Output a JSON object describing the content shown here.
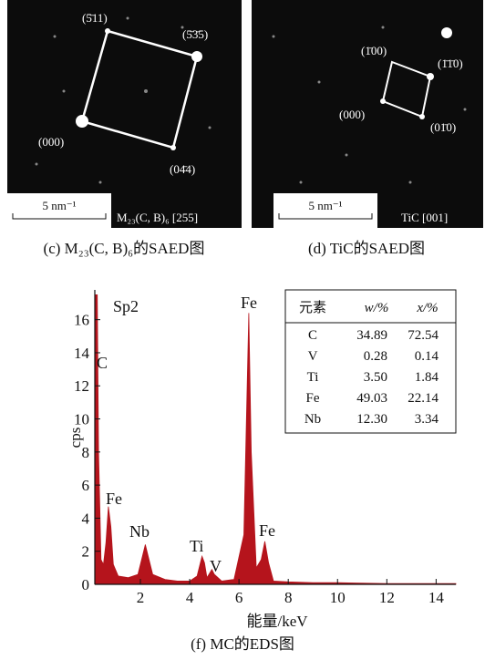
{
  "panels": [
    {
      "spots": [
        "(5̄11)",
        "(5̄3̄5)",
        "(000)",
        "(04̄4)"
      ],
      "scale_bar": "5 nm⁻¹",
      "phase": "M₂₃(C, B)₆ [255]",
      "caption": "(c) M₂₃(C, B)₆的SAED图"
    },
    {
      "spots": [
        "(1̄00)",
        "(1̄1̄0)",
        "(000)",
        "(01̄0)"
      ],
      "scale_bar": "5 nm⁻¹",
      "phase": "TiC [001]",
      "caption": "(d) TiC的SAED图"
    }
  ],
  "chart_data": {
    "type": "area",
    "caption": "(f) MC的EDS图",
    "xlabel": "能量/keV",
    "ylabel": "cps",
    "color": "#b5141c",
    "x": [
      0.15,
      0.2,
      0.25,
      0.3,
      0.4,
      0.5,
      0.6,
      0.7,
      0.8,
      0.9,
      1.1,
      1.5,
      1.9,
      2.1,
      2.2,
      2.3,
      2.5,
      3.0,
      3.5,
      4.0,
      4.3,
      4.5,
      4.6,
      4.7,
      4.9,
      5.0,
      5.3,
      5.8,
      6.2,
      6.4,
      6.5,
      6.7,
      6.9,
      7.05,
      7.2,
      7.4,
      8.0,
      9.0,
      10.0,
      12.0,
      14.0,
      14.8
    ],
    "values": [
      17.5,
      17.5,
      17.5,
      8,
      1.5,
      1.2,
      2.5,
      4.7,
      3.5,
      1.2,
      0.5,
      0.4,
      0.6,
      1.8,
      2.4,
      1.8,
      0.6,
      0.3,
      0.2,
      0.2,
      0.5,
      1.7,
      1.3,
      0.4,
      0.9,
      0.6,
      0.2,
      0.3,
      3,
      16.4,
      8,
      1,
      1.5,
      2.6,
      1.3,
      0.2,
      0.15,
      0.1,
      0.1,
      0.05,
      0.05,
      0.05
    ],
    "xlim": [
      0.15,
      14.8
    ],
    "ylim": [
      0,
      17.8
    ],
    "xticks": [
      2,
      4,
      6,
      8,
      10,
      12,
      14
    ],
    "yticks": [
      0,
      2,
      4,
      6,
      8,
      10,
      12,
      14,
      16
    ],
    "annotations": [
      "Sp2",
      "C",
      "Fe",
      "Nb",
      "Ti",
      "V",
      "Fe",
      "Fe"
    ],
    "table": {
      "header": [
        "元素",
        "w/%",
        "x/%"
      ],
      "rows": [
        [
          "C",
          "34.89",
          "72.54"
        ],
        [
          "V",
          "0.28",
          "0.14"
        ],
        [
          "Ti",
          "3.50",
          "1.84"
        ],
        [
          "Fe",
          "49.03",
          "22.14"
        ],
        [
          "Nb",
          "12.30",
          "3.34"
        ]
      ]
    }
  }
}
